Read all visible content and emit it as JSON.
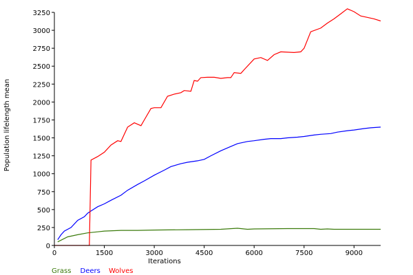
{
  "chart_data": {
    "type": "line",
    "xlabel": "Iterations",
    "ylabel": "Population lifelength mean",
    "xlim": [
      0,
      9800
    ],
    "ylim": [
      0,
      3250
    ],
    "x_ticks": [
      0,
      1500,
      3000,
      4500,
      6000,
      7500,
      9000
    ],
    "y_ticks": [
      0,
      250,
      500,
      750,
      1000,
      1250,
      1500,
      1750,
      2000,
      2250,
      2500,
      2750,
      3000,
      3250
    ],
    "legend_position": "bottom-left",
    "grid": false,
    "series": [
      {
        "name": "Grass",
        "color": "#3a7a0a",
        "x": [
          100,
          400,
          700,
          1000,
          1300,
          1500,
          2000,
          2500,
          3000,
          4000,
          5000,
          5500,
          5800,
          6000,
          7000,
          7800,
          8000,
          8200,
          8400,
          9000,
          9800
        ],
        "y": [
          50,
          120,
          150,
          175,
          190,
          200,
          210,
          210,
          215,
          220,
          225,
          240,
          225,
          230,
          235,
          235,
          225,
          230,
          225,
          225,
          225
        ]
      },
      {
        "name": "Deers",
        "color": "#0000ff",
        "x": [
          100,
          200,
          300,
          500,
          700,
          900,
          1000,
          1100,
          1300,
          1500,
          1700,
          2000,
          2200,
          2500,
          2700,
          3000,
          3300,
          3500,
          3800,
          4000,
          4300,
          4500,
          4700,
          5000,
          5300,
          5500,
          5800,
          6000,
          6300,
          6500,
          6800,
          7000,
          7300,
          7500,
          7800,
          8000,
          8300,
          8500,
          8800,
          9000,
          9300,
          9500,
          9800
        ],
        "y": [
          80,
          150,
          200,
          250,
          350,
          400,
          450,
          480,
          540,
          580,
          630,
          700,
          770,
          850,
          900,
          980,
          1050,
          1100,
          1140,
          1160,
          1180,
          1200,
          1250,
          1320,
          1380,
          1420,
          1450,
          1460,
          1480,
          1490,
          1490,
          1500,
          1510,
          1520,
          1540,
          1550,
          1560,
          1580,
          1600,
          1610,
          1630,
          1640,
          1650
        ]
      },
      {
        "name": "Wolves",
        "color": "#ff0000",
        "x": [
          0,
          1050,
          1100,
          1300,
          1500,
          1700,
          1900,
          2000,
          2200,
          2400,
          2600,
          2700,
          2900,
          3000,
          3200,
          3400,
          3600,
          3800,
          3900,
          4100,
          4200,
          4300,
          4400,
          4600,
          4800,
          5000,
          5200,
          5300,
          5400,
          5600,
          5700,
          6000,
          6200,
          6400,
          6600,
          6800,
          7200,
          7400,
          7500,
          7700,
          8000,
          8200,
          8400,
          8600,
          8800,
          9000,
          9200,
          9400,
          9600,
          9800
        ],
        "y": [
          0,
          0,
          1190,
          1240,
          1300,
          1400,
          1460,
          1450,
          1650,
          1710,
          1670,
          1750,
          1910,
          1920,
          1920,
          2080,
          2110,
          2130,
          2160,
          2150,
          2300,
          2290,
          2340,
          2345,
          2345,
          2330,
          2340,
          2340,
          2410,
          2400,
          2450,
          2600,
          2620,
          2580,
          2660,
          2700,
          2690,
          2700,
          2750,
          2980,
          3030,
          3100,
          3160,
          3230,
          3300,
          3260,
          3200,
          3180,
          3160,
          3130
        ]
      }
    ]
  }
}
